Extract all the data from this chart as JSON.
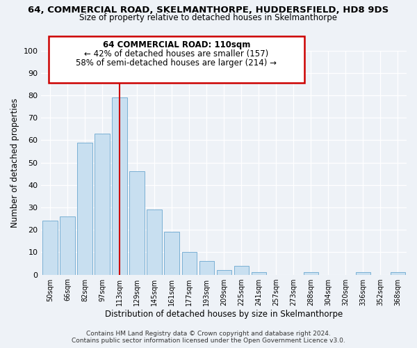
{
  "title": "64, COMMERCIAL ROAD, SKELMANTHORPE, HUDDERSFIELD, HD8 9DS",
  "subtitle": "Size of property relative to detached houses in Skelmanthorpe",
  "xlabel": "Distribution of detached houses by size in Skelmanthorpe",
  "ylabel": "Number of detached properties",
  "footer1": "Contains HM Land Registry data © Crown copyright and database right 2024.",
  "footer2": "Contains public sector information licensed under the Open Government Licence v3.0.",
  "bar_labels": [
    "50sqm",
    "66sqm",
    "82sqm",
    "97sqm",
    "113sqm",
    "129sqm",
    "145sqm",
    "161sqm",
    "177sqm",
    "193sqm",
    "209sqm",
    "225sqm",
    "241sqm",
    "257sqm",
    "273sqm",
    "288sqm",
    "304sqm",
    "320sqm",
    "336sqm",
    "352sqm",
    "368sqm"
  ],
  "bar_values": [
    24,
    26,
    59,
    63,
    79,
    46,
    29,
    19,
    10,
    6,
    2,
    4,
    1,
    0,
    0,
    1,
    0,
    0,
    1,
    0,
    1
  ],
  "bar_color": "#c8dff0",
  "bar_edge_color": "#7ab0d4",
  "highlight_bar_index": 4,
  "highlight_line_color": "#cc0000",
  "ylim": [
    0,
    100
  ],
  "yticks": [
    0,
    10,
    20,
    30,
    40,
    50,
    60,
    70,
    80,
    90,
    100
  ],
  "annotation_title": "64 COMMERCIAL ROAD: 110sqm",
  "annotation_line1": "← 42% of detached houses are smaller (157)",
  "annotation_line2": "58% of semi-detached houses are larger (214) →",
  "annotation_box_color": "#ffffff",
  "annotation_box_edge": "#cc0000",
  "background_color": "#eef2f7"
}
